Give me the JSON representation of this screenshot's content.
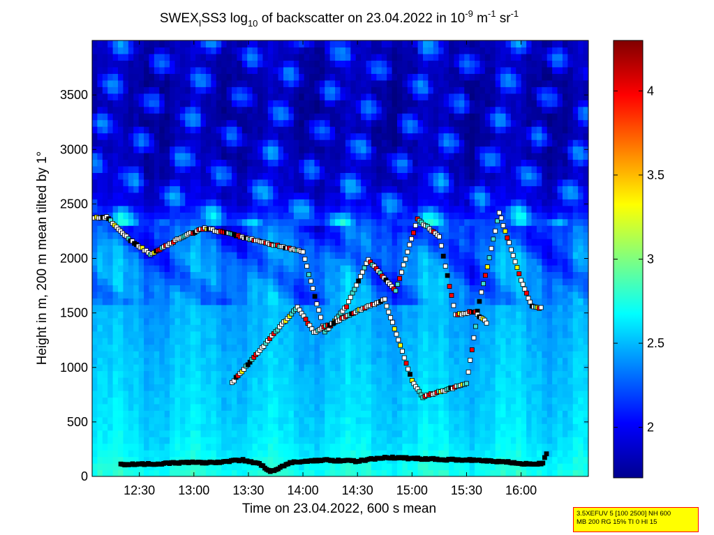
{
  "chart_data": {
    "type": "heatmap",
    "title": {
      "prefix": "SWEX",
      "prefix_sub": "I",
      "part1": "SS3 log",
      "part1_sub": "10",
      "part2": " of backscatter on 23.04.2022 in 10",
      "exp1": "-9",
      "part3": " m",
      "exp2": "-1",
      "part4": " sr",
      "exp3": "-1"
    },
    "xlabel": "Time on 23.04.2022, 600 s mean",
    "ylabel": "Height in m, 200 m mean tilted by 1°",
    "x_range_hours": [
      12.067,
      16.617
    ],
    "y_range_m": [
      0,
      4000
    ],
    "x_ticks": [
      {
        "value": 12.5,
        "label": "12:30"
      },
      {
        "value": 13.0,
        "label": "13:00"
      },
      {
        "value": 13.5,
        "label": "13:30"
      },
      {
        "value": 14.0,
        "label": "14:00"
      },
      {
        "value": 14.5,
        "label": "14:30"
      },
      {
        "value": 15.0,
        "label": "15:00"
      },
      {
        "value": 15.5,
        "label": "15:30"
      },
      {
        "value": 16.0,
        "label": "16:00"
      }
    ],
    "y_ticks": [
      {
        "value": 0,
        "label": "0"
      },
      {
        "value": 500,
        "label": "500"
      },
      {
        "value": 1000,
        "label": "1000"
      },
      {
        "value": 1500,
        "label": "1500"
      },
      {
        "value": 2000,
        "label": "2000"
      },
      {
        "value": 2500,
        "label": "2500"
      },
      {
        "value": 3000,
        "label": "3000"
      },
      {
        "value": 3500,
        "label": "3500"
      }
    ],
    "colorbar": {
      "range": [
        1.7,
        4.3
      ],
      "colormap": "jet",
      "ticks": [
        {
          "value": 2.0,
          "label": "2"
        },
        {
          "value": 2.5,
          "label": "2.5"
        },
        {
          "value": 3.0,
          "label": "3"
        },
        {
          "value": 3.5,
          "label": "3.5"
        },
        {
          "value": 4.0,
          "label": "4"
        }
      ]
    },
    "aerosol_profile": {
      "heights_m": [
        0,
        150,
        300,
        500,
        800,
        1200,
        1600,
        2000,
        2300,
        2500,
        2800,
        3200,
        3600,
        4000
      ],
      "values": [
        2.75,
        2.68,
        2.62,
        2.58,
        2.55,
        2.5,
        2.45,
        2.4,
        2.25,
        1.95,
        1.85,
        1.8,
        1.8,
        1.85
      ]
    },
    "layer_height_series": [
      {
        "name": "bottom",
        "points": [
          [
            12.33,
            110
          ],
          [
            12.6,
            115
          ],
          [
            12.9,
            125
          ],
          [
            13.2,
            130
          ],
          [
            13.45,
            150
          ],
          [
            13.6,
            120
          ],
          [
            13.7,
            40
          ],
          [
            13.9,
            130
          ],
          [
            14.2,
            150
          ],
          [
            14.5,
            140
          ],
          [
            14.75,
            175
          ],
          [
            15.0,
            165
          ],
          [
            15.3,
            155
          ],
          [
            15.6,
            150
          ],
          [
            15.9,
            130
          ],
          [
            16.1,
            110
          ],
          [
            16.2,
            120
          ],
          [
            16.25,
            260
          ]
        ]
      },
      {
        "name": "upper",
        "points": [
          [
            12.07,
            2370
          ],
          [
            12.2,
            2380
          ],
          [
            12.4,
            2180
          ],
          [
            12.6,
            2040
          ],
          [
            12.9,
            2200
          ],
          [
            13.1,
            2280
          ],
          [
            14.0,
            2060
          ],
          [
            14.2,
            1320
          ],
          [
            14.4,
            1560
          ],
          [
            14.6,
            1990
          ],
          [
            14.85,
            1700
          ],
          [
            15.05,
            2360
          ],
          [
            15.25,
            2200
          ],
          [
            15.4,
            1480
          ],
          [
            15.6,
            1520
          ],
          [
            15.8,
            2420
          ],
          [
            16.0,
            1800
          ],
          [
            16.1,
            1560
          ],
          [
            16.2,
            1540
          ]
        ]
      },
      {
        "name": "middle",
        "points": [
          [
            13.35,
            860
          ],
          [
            13.95,
            1560
          ],
          [
            14.1,
            1320
          ],
          [
            14.5,
            1520
          ],
          [
            14.6,
            1560
          ],
          [
            14.75,
            1620
          ],
          [
            15.0,
            880
          ],
          [
            15.1,
            730
          ],
          [
            15.5,
            850
          ],
          [
            15.6,
            1480
          ],
          [
            15.7,
            1400
          ]
        ]
      }
    ],
    "info_lines": [
      "3.5XEFUV 5 [100 2500] NH 600",
      "MB 200 RG 15% TI 0 HI 15"
    ]
  }
}
